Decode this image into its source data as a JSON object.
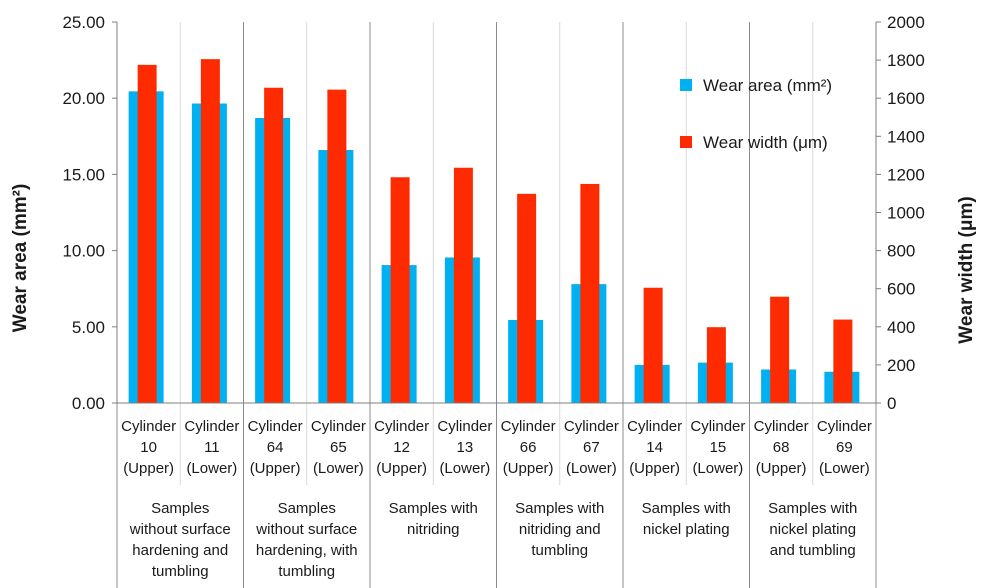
{
  "chart_data": {
    "type": "bar",
    "title": "",
    "categories": [
      [
        "Cylinder",
        "10",
        "(Upper)"
      ],
      [
        "Cylinder",
        "11",
        "(Lower)"
      ],
      [
        "Cylinder",
        "64",
        "(Upper)"
      ],
      [
        "Cylinder",
        "65",
        "(Lower)"
      ],
      [
        "Cylinder",
        "12",
        "(Upper)"
      ],
      [
        "Cylinder",
        "13",
        "(Lower)"
      ],
      [
        "Cylinder",
        "66",
        "(Upper)"
      ],
      [
        "Cylinder",
        "67",
        "(Lower)"
      ],
      [
        "Cylinder",
        "14",
        "(Upper)"
      ],
      [
        "Cylinder",
        "15",
        "(Lower)"
      ],
      [
        "Cylinder",
        "68",
        "(Upper)"
      ],
      [
        "Cylinder",
        "69",
        "(Lower)"
      ]
    ],
    "groups": [
      [
        "Samples",
        "without surface",
        "hardening and",
        "tumbling"
      ],
      [
        "Samples",
        "without surface",
        "hardening, with",
        "tumbling"
      ],
      [
        "Samples with",
        "nitriding"
      ],
      [
        "Samples with",
        "nitriding and",
        "tumbling"
      ],
      [
        "Samples with",
        "nickel plating"
      ],
      [
        "Samples with",
        "nickel plating",
        "and tumbling"
      ]
    ],
    "series": [
      {
        "name": "Wear area (mm²)",
        "axis": "left",
        "color": "#00b0f0",
        "values": [
          20.45,
          19.65,
          18.7,
          16.6,
          9.05,
          9.55,
          5.45,
          7.8,
          2.5,
          2.65,
          2.2,
          2.05
        ]
      },
      {
        "name": "Wear width (μm)",
        "axis": "right",
        "color": "#ff2b00",
        "values": [
          1775,
          1805,
          1655,
          1645,
          1185,
          1235,
          1098,
          1150,
          605,
          398,
          558,
          438
        ]
      }
    ],
    "ylabel": "Wear  area (mm²)",
    "y2label": "Wear width (μm)",
    "ylim": [
      0,
      25
    ],
    "y2lim": [
      0,
      2000
    ],
    "yticks": [
      "0.00",
      "5.00",
      "10.00",
      "15.00",
      "20.00",
      "25.00"
    ],
    "y2ticks": [
      "0",
      "200",
      "400",
      "600",
      "800",
      "1000",
      "1200",
      "1400",
      "1600",
      "1800",
      "2000"
    ],
    "legend_position": "top-right",
    "grid": "vertical-separators"
  }
}
